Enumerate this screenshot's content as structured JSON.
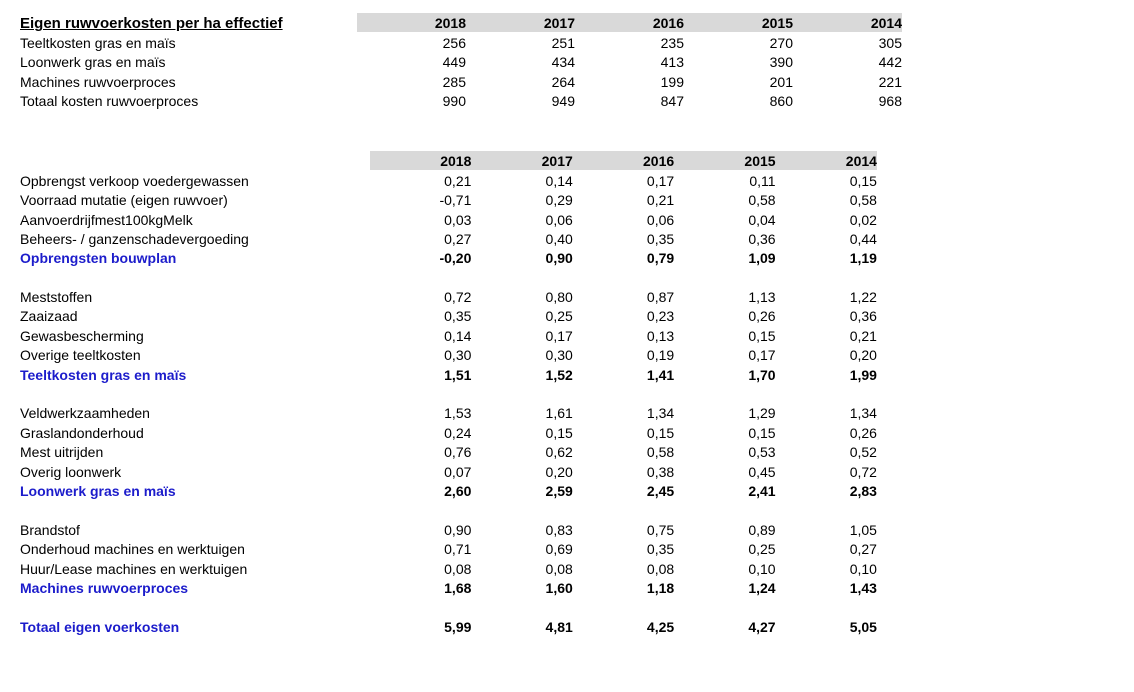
{
  "colors": {
    "header_bg": "#d9d9d9",
    "total_blue": "#1c1ccb",
    "text": "#000000",
    "background": "#ffffff"
  },
  "years": [
    "2018",
    "2017",
    "2016",
    "2015",
    "2014"
  ],
  "table1": {
    "title": "Eigen ruwvoerkosten per ha effectief",
    "rows": [
      {
        "label": "Teeltkosten gras en maïs",
        "values": [
          "256",
          "251",
          "235",
          "270",
          "305"
        ],
        "style": "normal"
      },
      {
        "label": "Loonwerk gras en maïs",
        "values": [
          "449",
          "434",
          "413",
          "390",
          "442"
        ],
        "style": "normal"
      },
      {
        "label": "Machines ruwvoerproces",
        "values": [
          "285",
          "264",
          "199",
          "201",
          "221"
        ],
        "style": "normal"
      },
      {
        "label": "Totaal kosten ruwvoerproces",
        "values": [
          "990",
          "949",
          "847",
          "860",
          "968"
        ],
        "style": "normal"
      }
    ]
  },
  "table2": {
    "groups": [
      {
        "name": "opbrengsten-bouwplan",
        "rows": [
          {
            "label": "Opbrengst verkoop voedergewassen",
            "values": [
              "0,21",
              "0,14",
              "0,17",
              "0,11",
              "0,15"
            ],
            "style": "normal"
          },
          {
            "label": "Voorraad mutatie (eigen ruwvoer)",
            "values": [
              "-0,71",
              "0,29",
              "0,21",
              "0,58",
              "0,58"
            ],
            "style": "normal"
          },
          {
            "label": "Aanvoerdrijfmest100kgMelk",
            "values": [
              "0,03",
              "0,06",
              "0,06",
              "0,04",
              "0,02"
            ],
            "style": "normal"
          },
          {
            "label": "Beheers- / ganzenschadevergoeding",
            "values": [
              "0,27",
              "0,40",
              "0,35",
              "0,36",
              "0,44"
            ],
            "style": "normal"
          },
          {
            "label": "Opbrengsten bouwplan",
            "values": [
              "-0,20",
              "0,90",
              "0,79",
              "1,09",
              "1,19"
            ],
            "style": "total"
          }
        ]
      },
      {
        "name": "teeltkosten-gras-en-mais",
        "rows": [
          {
            "label": "Meststoffen",
            "values": [
              "0,72",
              "0,80",
              "0,87",
              "1,13",
              "1,22"
            ],
            "style": "normal"
          },
          {
            "label": "Zaaizaad",
            "values": [
              "0,35",
              "0,25",
              "0,23",
              "0,26",
              "0,36"
            ],
            "style": "normal"
          },
          {
            "label": "Gewasbescherming",
            "values": [
              "0,14",
              "0,17",
              "0,13",
              "0,15",
              "0,21"
            ],
            "style": "normal"
          },
          {
            "label": "Overige teeltkosten",
            "values": [
              "0,30",
              "0,30",
              "0,19",
              "0,17",
              "0,20"
            ],
            "style": "normal"
          },
          {
            "label": "Teeltkosten gras en maïs",
            "values": [
              "1,51",
              "1,52",
              "1,41",
              "1,70",
              "1,99"
            ],
            "style": "total"
          }
        ]
      },
      {
        "name": "loonwerk-gras-en-mais",
        "rows": [
          {
            "label": "Veldwerkzaamheden",
            "values": [
              "1,53",
              "1,61",
              "1,34",
              "1,29",
              "1,34"
            ],
            "style": "normal"
          },
          {
            "label": "Graslandonderhoud",
            "values": [
              "0,24",
              "0,15",
              "0,15",
              "0,15",
              "0,26"
            ],
            "style": "normal"
          },
          {
            "label": "Mest uitrijden",
            "values": [
              "0,76",
              "0,62",
              "0,58",
              "0,53",
              "0,52"
            ],
            "style": "normal"
          },
          {
            "label": "Overig loonwerk",
            "values": [
              "0,07",
              "0,20",
              "0,38",
              "0,45",
              "0,72"
            ],
            "style": "normal"
          },
          {
            "label": "Loonwerk gras en maïs",
            "values": [
              "2,60",
              "2,59",
              "2,45",
              "2,41",
              "2,83"
            ],
            "style": "total"
          }
        ]
      },
      {
        "name": "machines-ruwvoerproces",
        "rows": [
          {
            "label": "Brandstof",
            "values": [
              "0,90",
              "0,83",
              "0,75",
              "0,89",
              "1,05"
            ],
            "style": "normal"
          },
          {
            "label": "Onderhoud machines en werktuigen",
            "values": [
              "0,71",
              "0,69",
              "0,35",
              "0,25",
              "0,27"
            ],
            "style": "normal"
          },
          {
            "label": "Huur/Lease machines en werktuigen",
            "values": [
              "0,08",
              "0,08",
              "0,08",
              "0,10",
              "0,10"
            ],
            "style": "normal"
          },
          {
            "label": "Machines ruwvoerproces",
            "values": [
              "1,68",
              "1,60",
              "1,18",
              "1,24",
              "1,43"
            ],
            "style": "total"
          }
        ]
      },
      {
        "name": "totaal-eigen-voerkosten",
        "rows": [
          {
            "label": "Totaal eigen voerkosten",
            "values": [
              "5,99",
              "4,81",
              "4,25",
              "4,27",
              "5,05"
            ],
            "style": "total"
          }
        ]
      }
    ]
  }
}
